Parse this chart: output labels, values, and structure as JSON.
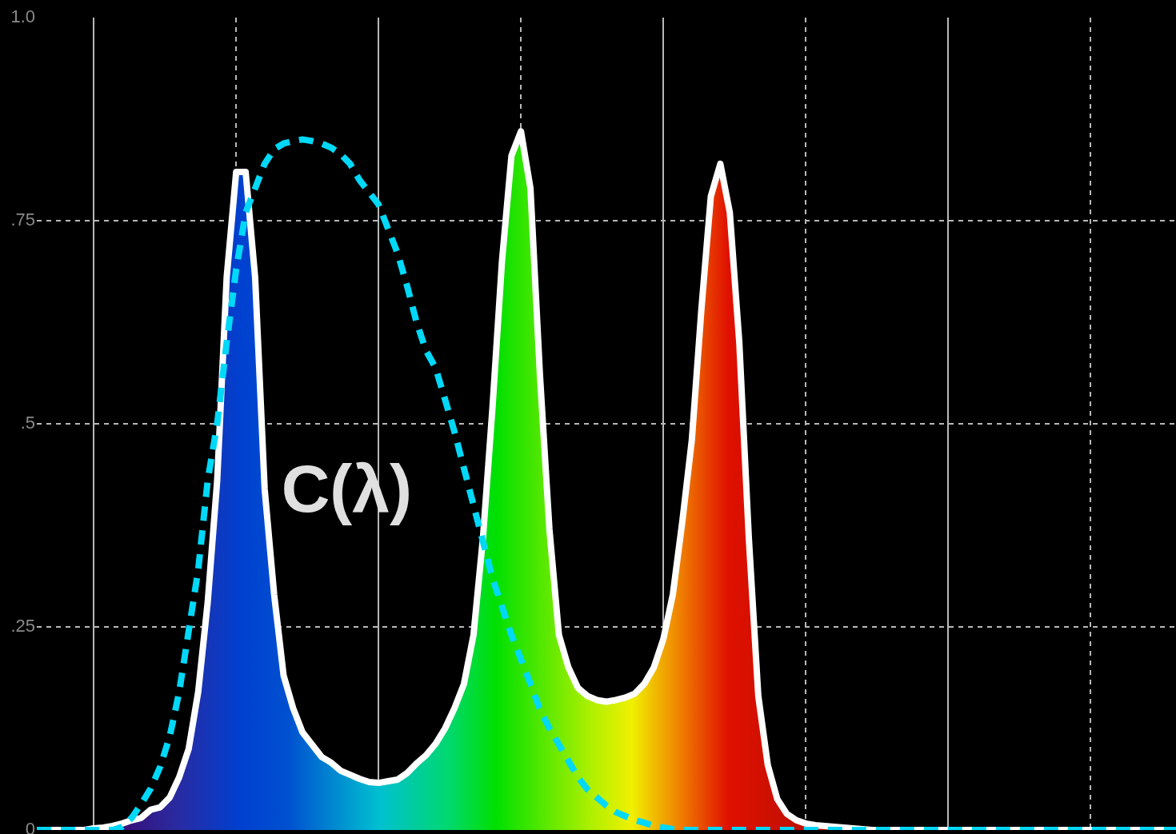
{
  "chart_data": {
    "type": "area",
    "categories": [
      null,
      null,
      null,
      null,
      null,
      null,
      null,
      null,
      null,
      null,
      null,
      null,
      null,
      null,
      null,
      null,
      null,
      null,
      null,
      null,
      null,
      null,
      null,
      null,
      null,
      null,
      null,
      null,
      null,
      null,
      null,
      null,
      null,
      null,
      null,
      null,
      null,
      null,
      null,
      null,
      null,
      null,
      null,
      null,
      null,
      null,
      null,
      null,
      null,
      null,
      null,
      null,
      null,
      null,
      null,
      null,
      null,
      null,
      null,
      null,
      null,
      null,
      null,
      null,
      null,
      null,
      null,
      null,
      null,
      null,
      null,
      null,
      null,
      null,
      null,
      null,
      null,
      null,
      null,
      null,
      null,
      null,
      null,
      null,
      null,
      null,
      null,
      null,
      null,
      null,
      null,
      null,
      null,
      null,
      null,
      null,
      null,
      null,
      null,
      null,
      null,
      null,
      null,
      null,
      null,
      null,
      null,
      null,
      null,
      null,
      null,
      null,
      null,
      null,
      null,
      null,
      null,
      null,
      null,
      null,
      null
    ],
    "series": [
      {
        "type": "area",
        "color": "#ffffff",
        "values": [
          0,
          0,
          0,
          0,
          0,
          0,
          0.002,
          0.003,
          0.005,
          0.008,
          0.012,
          0.015,
          0.025,
          0.028,
          0.04,
          0.065,
          0.1,
          0.17,
          0.28,
          0.43,
          0.68,
          0.81,
          0.81,
          0.68,
          0.42,
          0.29,
          0.19,
          0.15,
          0.12,
          0.105,
          0.09,
          0.083,
          0.073,
          0.068,
          0.063,
          0.059,
          0.058,
          0.06,
          0.062,
          0.07,
          0.082,
          0.092,
          0.106,
          0.125,
          0.15,
          0.18,
          0.24,
          0.36,
          0.52,
          0.7,
          0.83,
          0.86,
          0.79,
          0.56,
          0.37,
          0.24,
          0.2,
          0.175,
          0.165,
          0.16,
          0.158,
          0.16,
          0.163,
          0.168,
          0.18,
          0.2,
          0.235,
          0.29,
          0.38,
          0.48,
          0.64,
          0.78,
          0.82,
          0.76,
          0.6,
          0.36,
          0.165,
          0.08,
          0.038,
          0.02,
          0.012,
          0.008,
          0.006,
          0.005,
          0.004,
          0.003,
          0.002,
          0.001,
          0,
          0,
          0,
          0,
          0,
          0,
          0,
          0,
          0,
          0,
          0,
          0,
          0,
          0,
          0,
          0,
          0,
          0,
          0,
          0,
          0,
          0,
          0,
          0,
          0,
          0,
          0,
          0,
          0,
          0,
          0,
          0,
          0
        ]
      },
      {
        "type": "line",
        "color": "#00d8f8",
        "line_style": "dashed",
        "values": [
          0,
          0,
          0,
          0,
          0,
          0,
          0,
          0,
          0,
          0.004,
          0.015,
          0.032,
          0.051,
          0.078,
          0.115,
          0.17,
          0.245,
          0.32,
          0.43,
          0.5,
          0.6,
          0.69,
          0.76,
          0.79,
          0.82,
          0.838,
          0.845,
          0.848,
          0.85,
          0.848,
          0.845,
          0.84,
          0.832,
          0.82,
          0.8,
          0.785,
          0.77,
          0.74,
          0.71,
          0.67,
          0.625,
          0.59,
          0.569,
          0.53,
          0.49,
          0.445,
          0.4,
          0.355,
          0.31,
          0.275,
          0.24,
          0.21,
          0.18,
          0.148,
          0.125,
          0.105,
          0.085,
          0.065,
          0.05,
          0.04,
          0.03,
          0.022,
          0.017,
          0.012,
          0.009,
          0.005,
          0.003,
          0.001,
          0,
          0,
          0,
          0,
          0,
          0,
          0,
          0,
          0,
          0,
          0,
          0,
          0,
          0,
          0,
          0,
          0,
          0,
          0,
          0,
          0,
          0,
          0,
          0,
          0,
          0,
          0,
          0,
          0,
          0,
          0,
          0,
          0,
          0,
          0,
          0,
          0,
          0,
          0,
          0,
          0,
          0,
          0,
          0,
          0,
          0,
          0,
          0,
          0,
          0,
          0,
          0,
          0
        ]
      }
    ],
    "ylim": [
      0,
      1
    ],
    "yticks": [
      0,
      {
        "value": 0.25,
        "label": ".25"
      },
      {
        "value": 0.5,
        "label": ".5"
      },
      {
        "value": 0.75,
        "label": ".75"
      },
      {
        "value": 1,
        "label": "1.0"
      }
    ],
    "grid": true,
    "legend": false,
    "marker": "none",
    "tick_labels": "y",
    "annotations": [
      "C(λ)"
    ]
  }
}
